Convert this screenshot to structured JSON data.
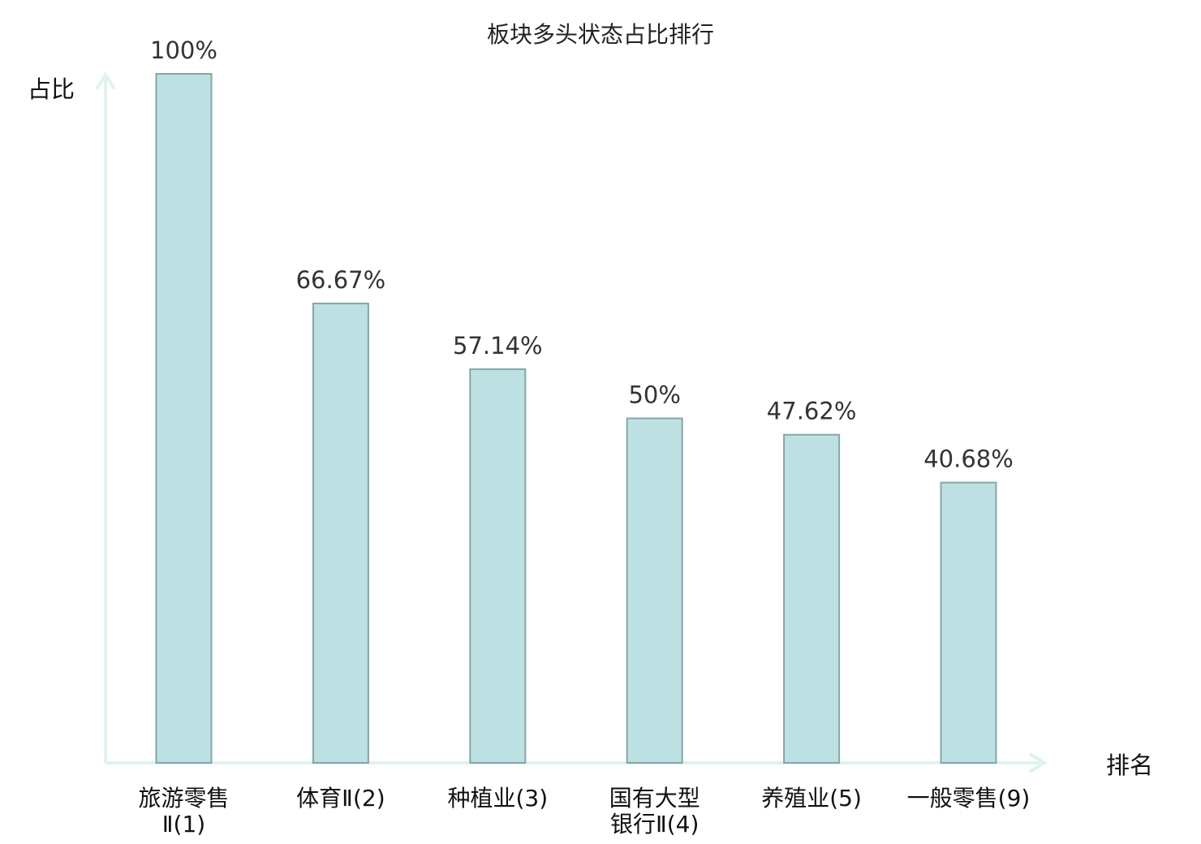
{
  "chart_data": {
    "type": "bar",
    "title": "板块多头状态占比排行",
    "ylabel": "占比",
    "xlabel": "排名",
    "ylim": [
      0,
      100
    ],
    "grid": false,
    "categories": [
      [
        "旅游零售",
        "Ⅱ(1)"
      ],
      [
        "体育Ⅱ(2)"
      ],
      [
        "种植业(3)"
      ],
      [
        "国有大型",
        "银行Ⅱ(4)"
      ],
      [
        "养殖业(5)"
      ],
      [
        "一般零售(9)"
      ]
    ],
    "values": [
      100,
      66.67,
      57.14,
      50,
      47.62,
      40.68
    ],
    "value_labels": [
      "100%",
      "66.67%",
      "57.14%",
      "50%",
      "47.62%",
      "40.68%"
    ],
    "highlight_index": 5,
    "colors": {
      "bar_fill": "#bde0e3",
      "bar_stroke": "#86a6a9",
      "axis": "#dff2f0",
      "highlight_text": "#e0141e"
    }
  }
}
